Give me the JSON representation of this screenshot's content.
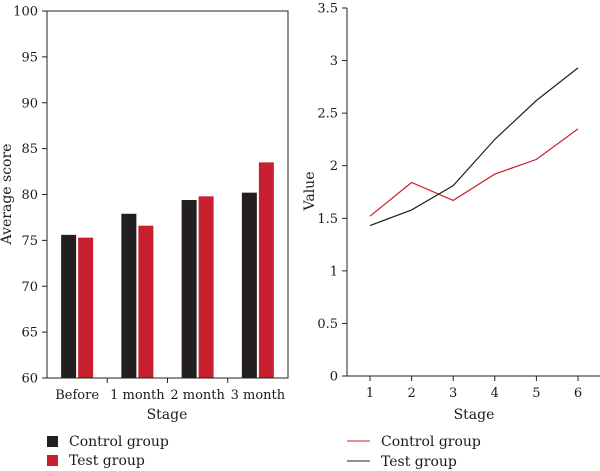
{
  "colors": {
    "control": "#231f20",
    "test": "#c8202f"
  },
  "chart_data": [
    {
      "type": "bar",
      "categories": [
        "Before",
        "1 month",
        "2 month",
        "3 month"
      ],
      "series": [
        {
          "name": "Control group",
          "values": [
            75.6,
            77.9,
            79.4,
            80.2
          ]
        },
        {
          "name": "Test group",
          "values": [
            75.3,
            76.6,
            79.8,
            83.5
          ]
        }
      ],
      "xlabel": "Stage",
      "ylabel": "Average score",
      "ylim": [
        60,
        100
      ],
      "yticks": [
        "60",
        "65",
        "70",
        "75",
        "80",
        "85",
        "90",
        "95",
        "100"
      ],
      "grid": false,
      "legend_position": "bottom-left"
    },
    {
      "type": "line",
      "x": [
        1,
        2,
        3,
        4,
        5,
        6
      ],
      "xticks": [
        "1",
        "2",
        "3",
        "4",
        "5",
        "6"
      ],
      "series": [
        {
          "name": "Control group",
          "values": [
            1.52,
            1.84,
            1.67,
            1.92,
            2.06,
            2.35
          ]
        },
        {
          "name": "Test group",
          "values": [
            1.43,
            1.58,
            1.81,
            2.25,
            2.62,
            2.93
          ]
        }
      ],
      "xlabel": "Stage",
      "ylabel": "Value",
      "ylim": [
        0,
        3.5
      ],
      "yticks": [
        "0",
        "0.5",
        "1",
        "1.5",
        "2",
        "2.5",
        "3",
        "3.5"
      ],
      "grid": false,
      "legend_position": "bottom"
    }
  ]
}
